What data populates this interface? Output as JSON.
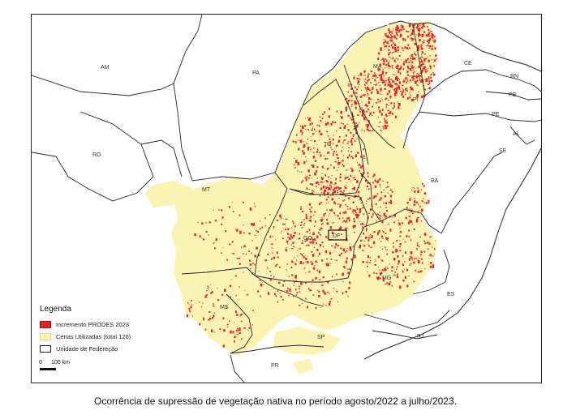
{
  "map": {
    "caption": "Ocorrência de supressão de vegetação nativa no período agosto/2022 a julho/2023.",
    "legend": {
      "title": "Legenda",
      "items": [
        {
          "label": "Incremento PRODES 2023",
          "color": "#e8212a"
        },
        {
          "label": "Cenas Utilizadas (total 126)",
          "color": "#fbf3b4"
        },
        {
          "label": "Unidade de Federeção",
          "color": "#ffffff"
        }
      ]
    },
    "scale": {
      "zero": "0",
      "hundred": "100 km"
    },
    "states": {
      "AM": "AM",
      "PA": "PA",
      "MA": "MA",
      "CE": "CE",
      "RN": "RN",
      "PB": "PB",
      "PE": "PE",
      "AL": "AL",
      "SE": "SE",
      "PI": "PI",
      "RO": "RO",
      "TO": "TO",
      "BA": "BA",
      "MT": "MT",
      "GO": "GO",
      "DF": "DF",
      "MG": "MG",
      "ES": "ES",
      "MS": "MS",
      "SP": "SP",
      "RJ": "RJ",
      "PR": "PR"
    },
    "colors": {
      "deforestation": "#e8212a",
      "scenes": "#fbf3b4",
      "border": "#222222"
    }
  }
}
